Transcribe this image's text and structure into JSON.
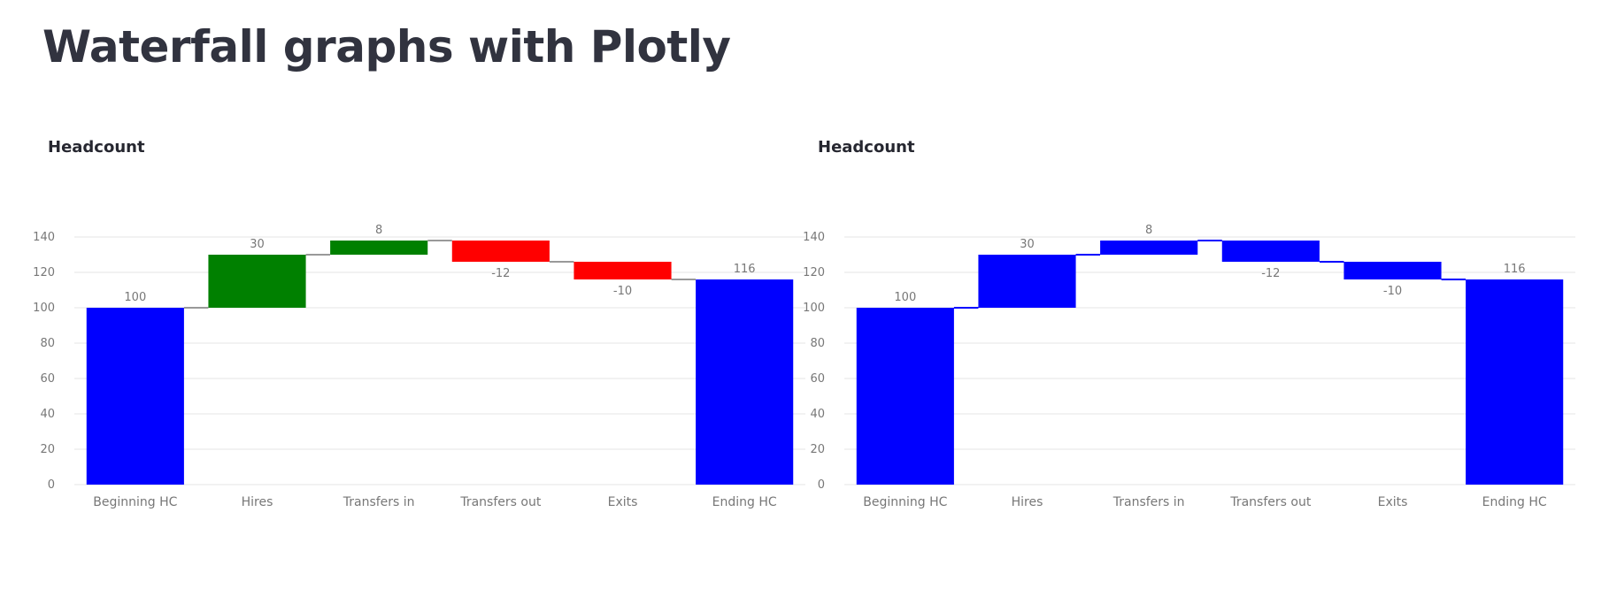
{
  "page": {
    "title": "Waterfall graphs with Plotly"
  },
  "chart_data": [
    {
      "type": "waterfall",
      "title": "Headcount",
      "categories": [
        "Beginning HC",
        "Hires",
        "Transfers in",
        "Transfers out",
        "Exits",
        "Ending HC"
      ],
      "measures": [
        "absolute",
        "relative",
        "relative",
        "relative",
        "relative",
        "total"
      ],
      "values": [
        100,
        30,
        8,
        -12,
        -10,
        116
      ],
      "data_labels": [
        "100",
        "30",
        "8",
        "-12",
        "-10",
        "116"
      ],
      "colors": {
        "increasing": "#008000",
        "decreasing": "#ff0000",
        "totals": "#0000ff",
        "connector": "#999999"
      },
      "show_connectors": true,
      "ylim": [
        0,
        140
      ],
      "yticks": [
        0,
        20,
        40,
        60,
        80,
        100,
        120,
        140
      ],
      "grid": true,
      "legend": "none",
      "xlabel": "",
      "ylabel": ""
    },
    {
      "type": "waterfall",
      "title": "Headcount",
      "categories": [
        "Beginning HC",
        "Hires",
        "Transfers in",
        "Transfers out",
        "Exits",
        "Ending HC"
      ],
      "measures": [
        "absolute",
        "relative",
        "relative",
        "relative",
        "relative",
        "total"
      ],
      "values": [
        100,
        30,
        8,
        -12,
        -10,
        116
      ],
      "data_labels": [
        "100",
        "30",
        "8",
        "-12",
        "-10",
        "116"
      ],
      "colors": {
        "increasing": "#0000ff",
        "decreasing": "#0000ff",
        "totals": "#0000ff",
        "connector": "#0000ff"
      },
      "show_connectors": true,
      "ylim": [
        0,
        140
      ],
      "yticks": [
        0,
        20,
        40,
        60,
        80,
        100,
        120,
        140
      ],
      "grid": true,
      "legend": "none",
      "xlabel": "",
      "ylabel": ""
    }
  ]
}
